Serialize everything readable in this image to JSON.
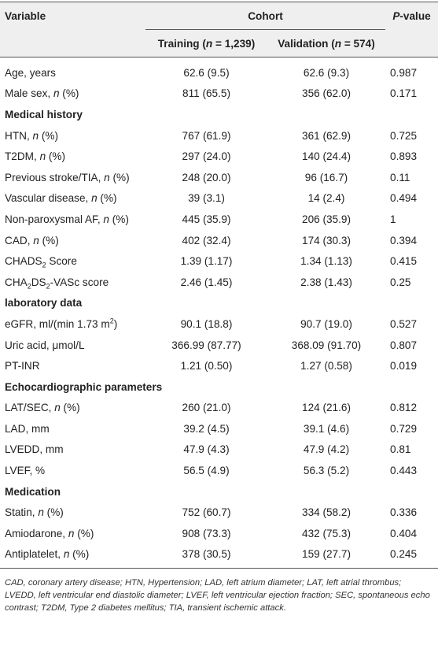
{
  "header": {
    "variable": "Variable",
    "cohort": "Cohort",
    "p_value": [
      {
        "text": "P",
        "format": "italic"
      },
      {
        "text": "-value"
      }
    ],
    "training": [
      {
        "text": "Training ("
      },
      {
        "text": "n",
        "format": "italic"
      },
      {
        "text": " = 1,239)"
      }
    ],
    "validation": [
      {
        "text": "Validation ("
      },
      {
        "text": "n",
        "format": "italic"
      },
      {
        "text": " = 574)"
      }
    ]
  },
  "rows": [
    {
      "label": [
        {
          "text": "Age, years"
        }
      ],
      "training": "62.6 (9.5)",
      "validation": "62.6 (9.3)",
      "p": "0.987"
    },
    {
      "label": [
        {
          "text": "Male sex, "
        },
        {
          "text": "n",
          "format": "italic"
        },
        {
          "text": " (%)"
        }
      ],
      "training": "811 (65.5)",
      "validation": "356 (62.0)",
      "p": "0.171"
    },
    {
      "section": "Medical history"
    },
    {
      "label": [
        {
          "text": "HTN, "
        },
        {
          "text": "n",
          "format": "italic"
        },
        {
          "text": " (%)"
        }
      ],
      "training": "767 (61.9)",
      "validation": "361 (62.9)",
      "p": "0.725"
    },
    {
      "label": [
        {
          "text": "T2DM, "
        },
        {
          "text": "n",
          "format": "italic"
        },
        {
          "text": " (%)"
        }
      ],
      "training": "297 (24.0)",
      "validation": "140 (24.4)",
      "p": "0.893"
    },
    {
      "label": [
        {
          "text": "Previous stroke/TIA, "
        },
        {
          "text": "n",
          "format": "italic"
        },
        {
          "text": " (%)"
        }
      ],
      "training": "248 (20.0)",
      "validation": "96 (16.7)",
      "p": "0.11"
    },
    {
      "label": [
        {
          "text": "Vascular disease, "
        },
        {
          "text": "n",
          "format": "italic"
        },
        {
          "text": " (%)"
        }
      ],
      "training": "39 (3.1)",
      "validation": "14 (2.4)",
      "p": "0.494"
    },
    {
      "label": [
        {
          "text": "Non-paroxysmal AF, "
        },
        {
          "text": "n",
          "format": "italic"
        },
        {
          "text": " (%)"
        }
      ],
      "training": "445 (35.9)",
      "validation": "206 (35.9)",
      "p": "1"
    },
    {
      "label": [
        {
          "text": "CAD, "
        },
        {
          "text": "n",
          "format": "italic"
        },
        {
          "text": " (%)"
        }
      ],
      "training": "402 (32.4)",
      "validation": "174 (30.3)",
      "p": "0.394"
    },
    {
      "label": [
        {
          "text": "CHADS"
        },
        {
          "text": "2",
          "format": "sub"
        },
        {
          "text": " Score"
        }
      ],
      "training": "1.39 (1.17)",
      "validation": "1.34 (1.13)",
      "p": "0.415"
    },
    {
      "label": [
        {
          "text": "CHA"
        },
        {
          "text": "2",
          "format": "sub"
        },
        {
          "text": "DS"
        },
        {
          "text": "2",
          "format": "sub"
        },
        {
          "text": "-VASc score"
        }
      ],
      "training": "2.46 (1.45)",
      "validation": "2.38 (1.43)",
      "p": "0.25"
    },
    {
      "section": "laboratory data"
    },
    {
      "label": [
        {
          "text": "eGFR, ml/(min 1.73 m"
        },
        {
          "text": "2",
          "format": "sup"
        },
        {
          "text": ")"
        }
      ],
      "training": "90.1 (18.8)",
      "validation": "90.7 (19.0)",
      "p": "0.527"
    },
    {
      "label": [
        {
          "text": "Uric acid, μmol/L"
        }
      ],
      "training": "366.99 (87.77)",
      "validation": "368.09 (91.70)",
      "p": "0.807"
    },
    {
      "label": [
        {
          "text": "PT-INR"
        }
      ],
      "training": "1.21 (0.50)",
      "validation": "1.27 (0.58)",
      "p": "0.019"
    },
    {
      "section": "Echocardiographic parameters"
    },
    {
      "label": [
        {
          "text": "LAT/SEC, "
        },
        {
          "text": "n",
          "format": "italic"
        },
        {
          "text": " (%)"
        }
      ],
      "training": "260 (21.0)",
      "validation": "124 (21.6)",
      "p": "0.812"
    },
    {
      "label": [
        {
          "text": "LAD, mm"
        }
      ],
      "training": "39.2 (4.5)",
      "validation": "39.1 (4.6)",
      "p": "0.729"
    },
    {
      "label": [
        {
          "text": "LVEDD, mm"
        }
      ],
      "training": "47.9 (4.3)",
      "validation": "47.9 (4.2)",
      "p": "0.81"
    },
    {
      "label": [
        {
          "text": "LVEF, %"
        }
      ],
      "training": "56.5 (4.9)",
      "validation": "56.3 (5.2)",
      "p": "0.443"
    },
    {
      "section": "Medication"
    },
    {
      "label": [
        {
          "text": "Statin, "
        },
        {
          "text": "n",
          "format": "italic"
        },
        {
          "text": " (%)"
        }
      ],
      "training": "752 (60.7)",
      "validation": "334 (58.2)",
      "p": "0.336"
    },
    {
      "label": [
        {
          "text": "Amiodarone, "
        },
        {
          "text": "n",
          "format": "italic"
        },
        {
          "text": " (%)"
        }
      ],
      "training": "908 (73.3)",
      "validation": "432 (75.3)",
      "p": "0.404"
    },
    {
      "label": [
        {
          "text": "Antiplatelet, "
        },
        {
          "text": "n",
          "format": "italic"
        },
        {
          "text": " (%)"
        }
      ],
      "training": "378 (30.5)",
      "validation": "159 (27.7)",
      "p": "0.245"
    }
  ],
  "footnote": "CAD, coronary artery disease; HTN, Hypertension; LAD, left atrium diameter; LAT, left atrial thrombus; LVEDD, left ventricular end diastolic diameter; LVEF, left ventricular ejection fraction; SEC, spontaneous echo contrast; T2DM, Type 2 diabetes mellitus; TIA, transient ischemic attack."
}
